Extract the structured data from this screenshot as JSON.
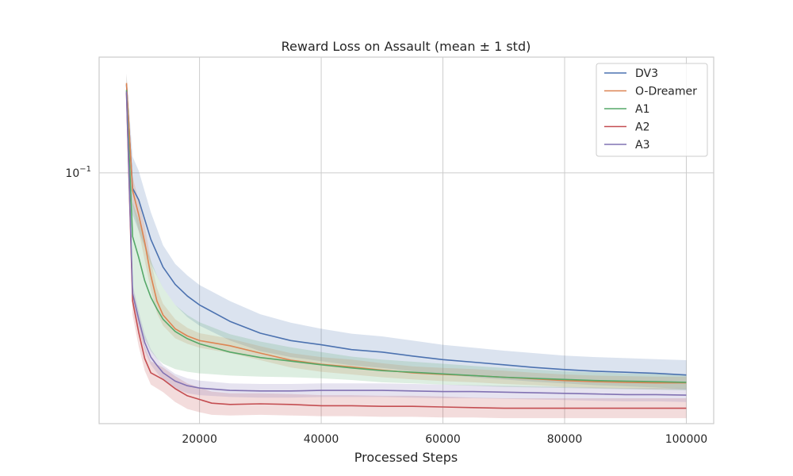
{
  "chart_data": {
    "type": "line",
    "title": "Reward Loss on Assault (mean ± 1 std)",
    "xlabel": "Processed Steps",
    "ylabel": "",
    "xlim": [
      3500,
      104500
    ],
    "ylim": [
      0.0305,
      0.173
    ],
    "yscale": "log",
    "xticks": [
      20000,
      40000,
      60000,
      80000,
      100000
    ],
    "xtick_labels": [
      "20000",
      "40000",
      "60000",
      "80000",
      "100000"
    ],
    "yticks": [
      0.1
    ],
    "ytick_labels": [
      "10",
      "−1"
    ],
    "grid": true,
    "legend_position": "top-right",
    "series": [
      {
        "name": "DV3",
        "color": "#4c72b0",
        "x": [
          8000,
          9000,
          10000,
          12000,
          14000,
          16000,
          18000,
          20000,
          25000,
          30000,
          35000,
          40000,
          45000,
          50000,
          55000,
          60000,
          65000,
          70000,
          75000,
          80000,
          85000,
          90000,
          95000,
          100000
        ],
        "y": [
          0.152,
          0.093,
          0.088,
          0.073,
          0.064,
          0.059,
          0.0558,
          0.0535,
          0.0495,
          0.0468,
          0.0452,
          0.0443,
          0.0433,
          0.0428,
          0.042,
          0.0413,
          0.0408,
          0.0403,
          0.0398,
          0.0394,
          0.0391,
          0.0389,
          0.0387,
          0.0384
        ],
        "lower": [
          0.142,
          0.082,
          0.076,
          0.065,
          0.058,
          0.0535,
          0.0505,
          0.0485,
          0.0452,
          0.043,
          0.0418,
          0.041,
          0.0402,
          0.0397,
          0.0391,
          0.0385,
          0.038,
          0.0376,
          0.0372,
          0.0369,
          0.0366,
          0.0364,
          0.0362,
          0.0359
        ],
        "upper": [
          0.16,
          0.108,
          0.101,
          0.083,
          0.071,
          0.065,
          0.0615,
          0.0588,
          0.0545,
          0.0512,
          0.0492,
          0.0478,
          0.0467,
          0.0461,
          0.0452,
          0.0443,
          0.0437,
          0.0431,
          0.0426,
          0.0421,
          0.0418,
          0.0416,
          0.0414,
          0.0412
        ]
      },
      {
        "name": "O-Dreamer",
        "color": "#dd8452",
        "x": [
          8000,
          9000,
          10000,
          11000,
          12000,
          13000,
          14000,
          16000,
          18000,
          20000,
          25000,
          30000,
          35000,
          40000,
          45000,
          50000,
          55000,
          60000,
          65000,
          70000,
          75000,
          80000,
          85000,
          90000,
          95000,
          100000
        ],
        "y": [
          0.153,
          0.092,
          0.082,
          0.072,
          0.0615,
          0.0545,
          0.051,
          0.0478,
          0.0462,
          0.0452,
          0.0441,
          0.0426,
          0.0412,
          0.0404,
          0.0399,
          0.0393,
          0.0388,
          0.0385,
          0.0383,
          0.038,
          0.0377,
          0.0374,
          0.0372,
          0.0371,
          0.037,
          0.037
        ],
        "lower": [
          0.146,
          0.086,
          0.076,
          0.066,
          0.0575,
          0.0515,
          0.0485,
          0.0457,
          0.0445,
          0.0437,
          0.0426,
          0.0412,
          0.0398,
          0.039,
          0.0385,
          0.038,
          0.0376,
          0.0373,
          0.0371,
          0.0368,
          0.0366,
          0.0363,
          0.0361,
          0.036,
          0.0359,
          0.0359
        ],
        "upper": [
          0.16,
          0.098,
          0.088,
          0.078,
          0.066,
          0.058,
          0.0538,
          0.05,
          0.048,
          0.0468,
          0.0456,
          0.044,
          0.0426,
          0.0418,
          0.0413,
          0.0406,
          0.04,
          0.0397,
          0.0395,
          0.0392,
          0.0388,
          0.0385,
          0.0383,
          0.0382,
          0.0381,
          0.0381
        ]
      },
      {
        "name": "A1",
        "color": "#55a868",
        "x": [
          8000,
          9000,
          10000,
          11000,
          12000,
          13000,
          14000,
          16000,
          18000,
          20000,
          25000,
          30000,
          35000,
          40000,
          45000,
          50000,
          55000,
          60000,
          65000,
          70000,
          75000,
          80000,
          85000,
          90000,
          95000,
          100000
        ],
        "y": [
          0.148,
          0.074,
          0.067,
          0.06,
          0.0555,
          0.0525,
          0.05,
          0.0472,
          0.0456,
          0.0445,
          0.0428,
          0.0417,
          0.041,
          0.0403,
          0.0397,
          0.0392,
          0.0389,
          0.0386,
          0.0383,
          0.038,
          0.0378,
          0.0376,
          0.0374,
          0.0373,
          0.0372,
          0.0371
        ],
        "lower": [
          0.136,
          0.058,
          0.05,
          0.0455,
          0.043,
          0.0415,
          0.0405,
          0.0395,
          0.039,
          0.0387,
          0.0383,
          0.0381,
          0.038,
          0.0378,
          0.0375,
          0.0371,
          0.0369,
          0.0367,
          0.0365,
          0.0363,
          0.0362,
          0.0361,
          0.036,
          0.0359,
          0.0358,
          0.0357
        ],
        "upper": [
          0.158,
          0.087,
          0.08,
          0.072,
          0.066,
          0.0615,
          0.058,
          0.0535,
          0.051,
          0.0493,
          0.0466,
          0.045,
          0.0438,
          0.0428,
          0.0419,
          0.0413,
          0.0409,
          0.0405,
          0.0401,
          0.0397,
          0.0394,
          0.0391,
          0.0389,
          0.0387,
          0.0386,
          0.0385
        ]
      },
      {
        "name": "A2",
        "color": "#c44e52",
        "x": [
          8000,
          9000,
          10000,
          11000,
          12000,
          14000,
          16000,
          18000,
          20000,
          22000,
          25000,
          30000,
          35000,
          40000,
          45000,
          50000,
          55000,
          60000,
          65000,
          70000,
          75000,
          80000,
          85000,
          90000,
          95000,
          100000
        ],
        "y": [
          0.146,
          0.0545,
          0.047,
          0.0415,
          0.0388,
          0.0376,
          0.036,
          0.0348,
          0.0342,
          0.0336,
          0.0334,
          0.0335,
          0.0334,
          0.0332,
          0.0332,
          0.0331,
          0.0331,
          0.033,
          0.0329,
          0.0328,
          0.0328,
          0.0328,
          0.0328,
          0.0328,
          0.0328,
          0.0328
        ],
        "lower": [
          0.138,
          0.051,
          0.044,
          0.0392,
          0.0367,
          0.0354,
          0.0338,
          0.0327,
          0.0322,
          0.0318,
          0.0317,
          0.0318,
          0.0317,
          0.0316,
          0.0316,
          0.0315,
          0.0315,
          0.0314,
          0.0314,
          0.0313,
          0.0313,
          0.0313,
          0.0313,
          0.0313,
          0.0313,
          0.0313
        ],
        "upper": [
          0.155,
          0.058,
          0.0505,
          0.044,
          0.041,
          0.0398,
          0.0382,
          0.0369,
          0.0362,
          0.0355,
          0.0352,
          0.0352,
          0.0351,
          0.0349,
          0.0349,
          0.0348,
          0.0348,
          0.0347,
          0.0345,
          0.0344,
          0.0344,
          0.0344,
          0.0344,
          0.0344,
          0.0344,
          0.0344
        ]
      },
      {
        "name": "A3",
        "color": "#8172b3",
        "x": [
          8000,
          9000,
          10000,
          11000,
          12000,
          13000,
          14000,
          16000,
          18000,
          20000,
          25000,
          30000,
          35000,
          40000,
          45000,
          50000,
          55000,
          60000,
          65000,
          70000,
          75000,
          80000,
          85000,
          90000,
          95000,
          100000
        ],
        "y": [
          0.147,
          0.0565,
          0.05,
          0.0448,
          0.0418,
          0.0402,
          0.0388,
          0.0373,
          0.0365,
          0.0361,
          0.0357,
          0.0356,
          0.0356,
          0.0357,
          0.0357,
          0.0357,
          0.0356,
          0.0355,
          0.0355,
          0.0354,
          0.0353,
          0.0352,
          0.0351,
          0.035,
          0.035,
          0.0349
        ],
        "lower": [
          0.14,
          0.054,
          0.048,
          0.043,
          0.0403,
          0.0388,
          0.0375,
          0.036,
          0.0352,
          0.0349,
          0.0346,
          0.0345,
          0.0345,
          0.0346,
          0.0346,
          0.0346,
          0.0345,
          0.0344,
          0.0344,
          0.0343,
          0.0342,
          0.0341,
          0.034,
          0.0339,
          0.0339,
          0.0338
        ],
        "upper": [
          0.154,
          0.059,
          0.052,
          0.0466,
          0.0434,
          0.0416,
          0.0402,
          0.0386,
          0.0378,
          0.0374,
          0.0369,
          0.0368,
          0.0368,
          0.0369,
          0.0369,
          0.0369,
          0.0368,
          0.0367,
          0.0366,
          0.0365,
          0.0364,
          0.0363,
          0.0362,
          0.0361,
          0.0361,
          0.036
        ]
      }
    ]
  }
}
